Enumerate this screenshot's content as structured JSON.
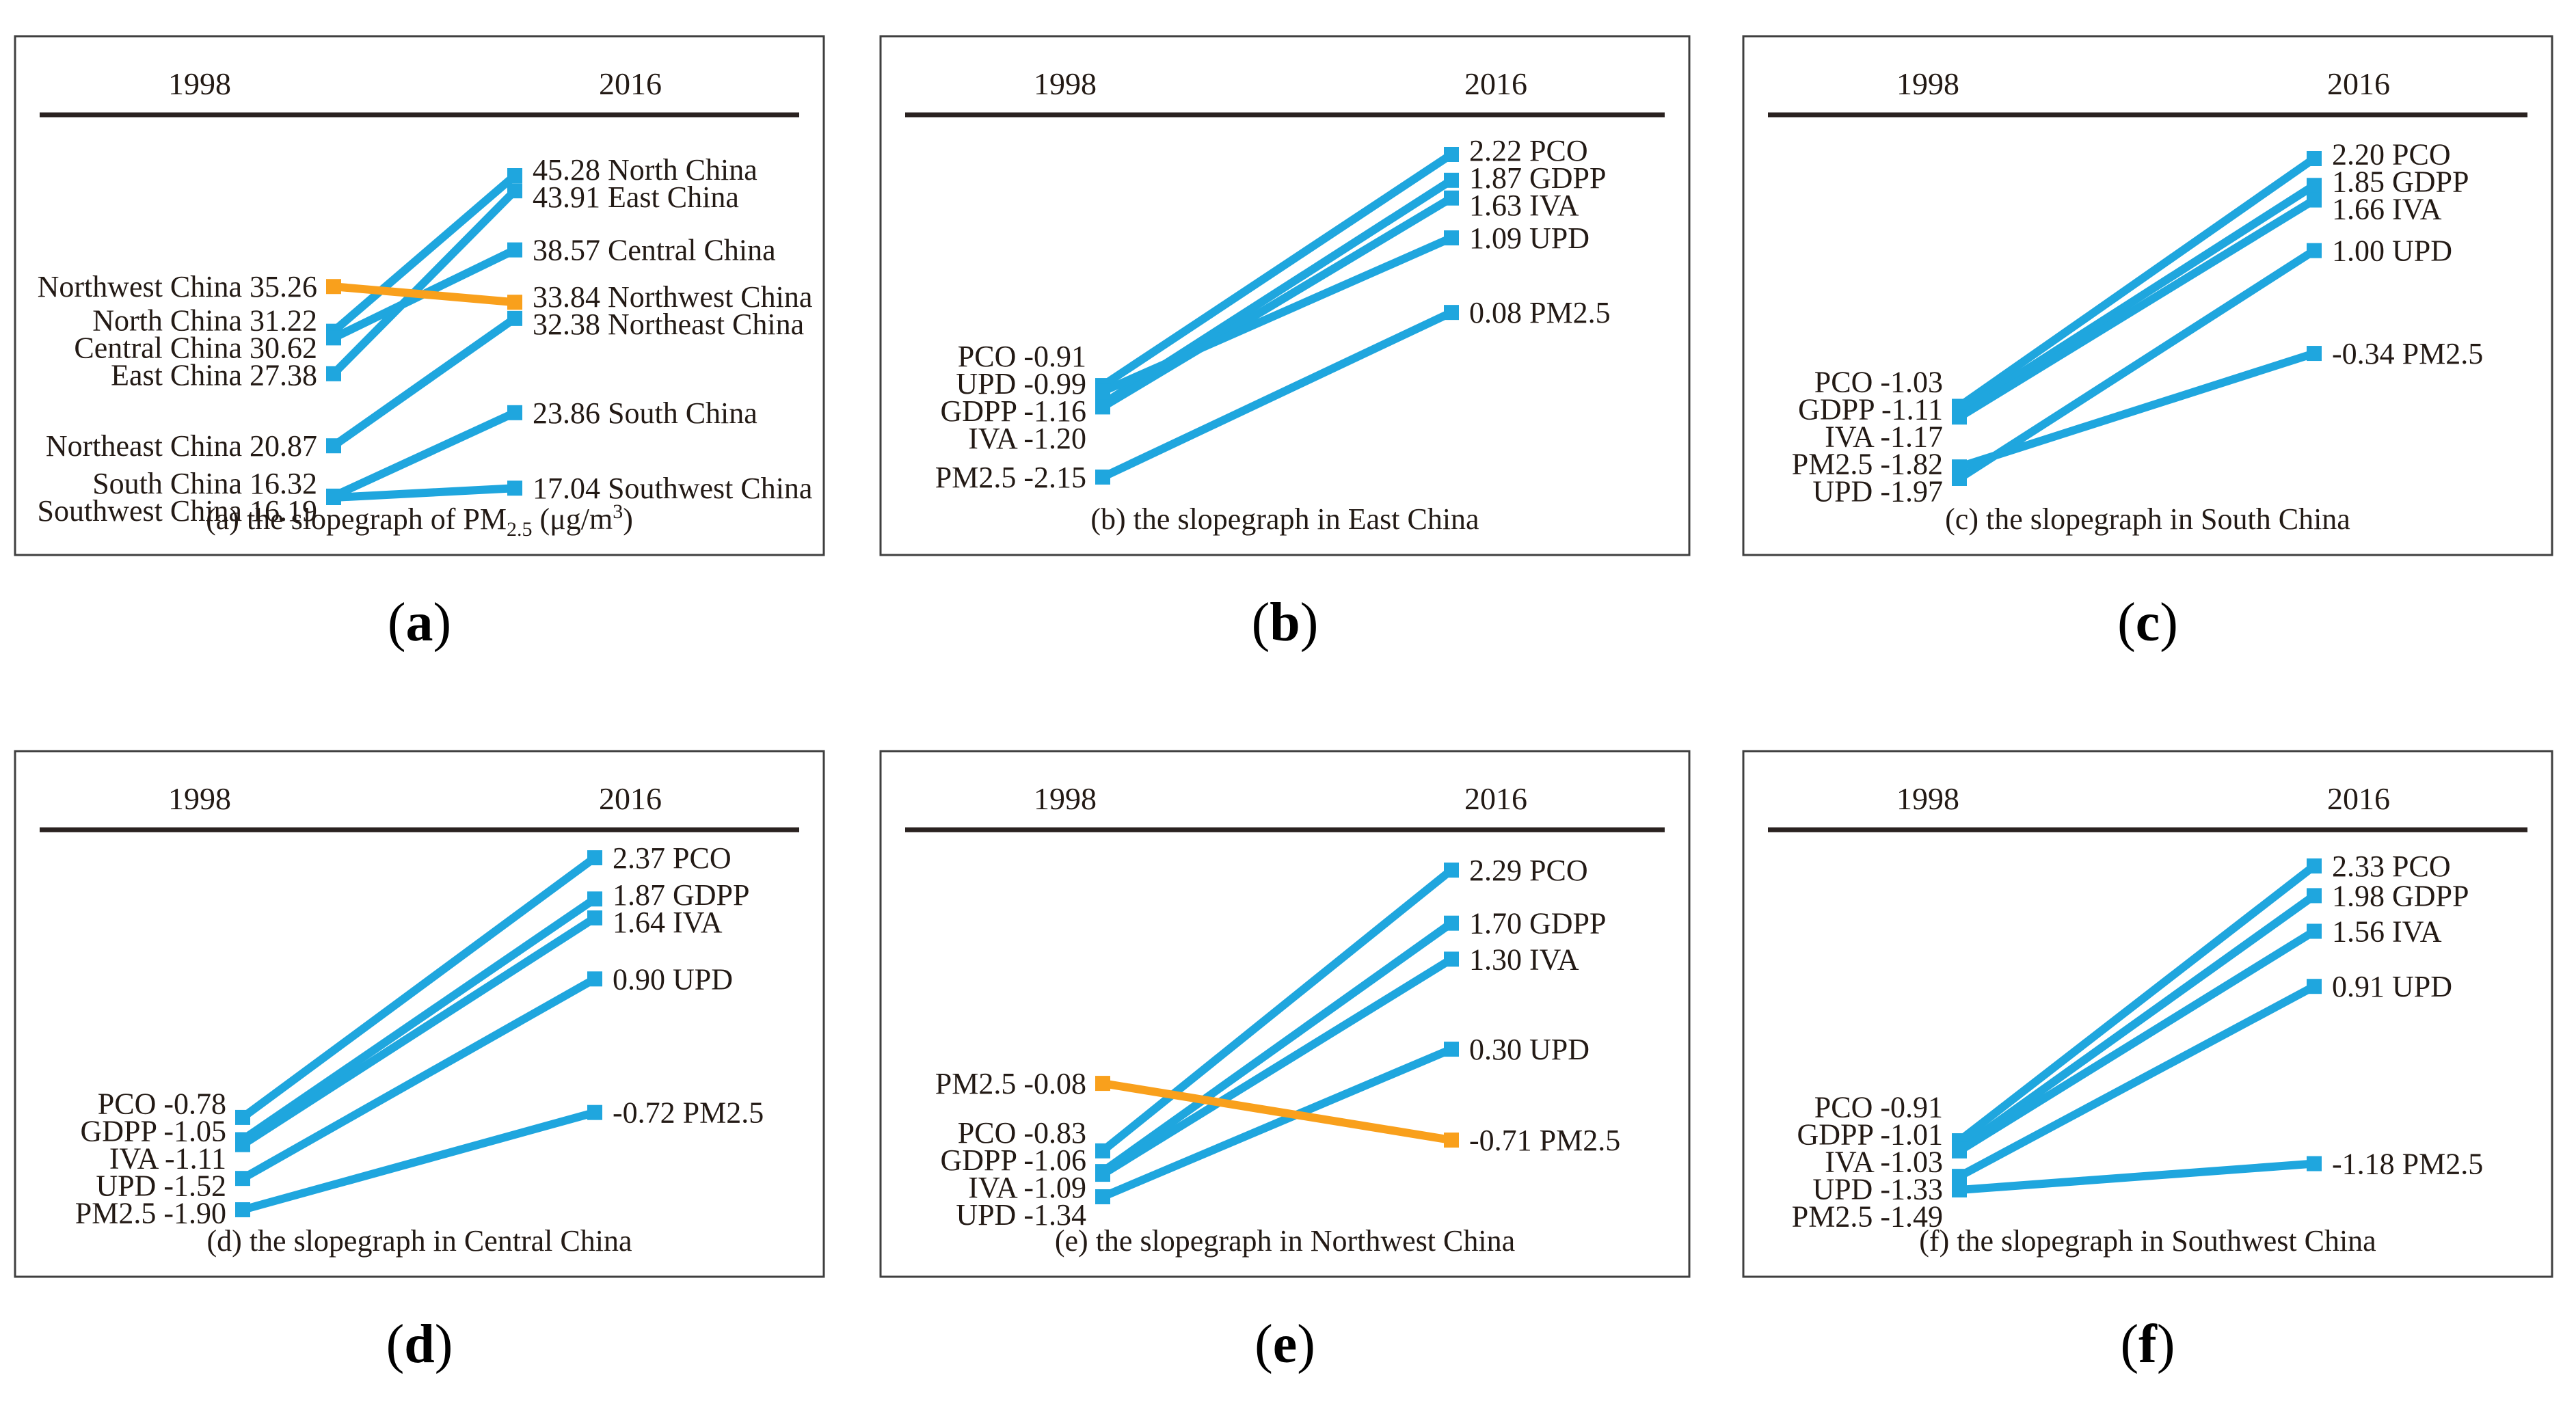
{
  "figure": {
    "colors": {
      "increase_blue": "#1FA6DE",
      "decrease_orange": "#F9A01C",
      "text": "#231A15",
      "frame": "#3F3F3F",
      "rule": "#2A2220"
    }
  },
  "chart_data": [
    {
      "type": "slopegraph",
      "title": "(a) the slopegraph of PM2.5 (μg/m3)",
      "letter": "a",
      "letter_parts": [
        {
          "t": "(",
          "b": false
        },
        {
          "t": "a",
          "b": true
        },
        {
          "t": ")",
          "b": false
        }
      ],
      "caption_parts": [
        {
          "t": "(a) the slopegraph of PM"
        },
        {
          "t": "2.5",
          "s": "sub"
        },
        {
          "t": " (μg/m",
          "s": ""
        },
        {
          "t": "3",
          "s": "sup"
        },
        {
          "t": ")",
          "s": ""
        }
      ],
      "columns": [
        "1998",
        "2016"
      ],
      "unit": "μg/m³",
      "series": [
        {
          "name": "North China",
          "values": [
            31.22,
            45.28
          ],
          "left_label": "North China 31.22",
          "right_label": "45.28 North China"
        },
        {
          "name": "East China",
          "values": [
            27.38,
            43.91
          ],
          "left_label": "East China 27.38",
          "right_label": "43.91 East China"
        },
        {
          "name": "Central China",
          "values": [
            30.62,
            38.57
          ],
          "left_label": "Central China 30.62",
          "right_label": "38.57 Central China"
        },
        {
          "name": "Northwest China",
          "values": [
            35.26,
            33.84
          ],
          "left_label": "Northwest China 35.26",
          "right_label": "33.84 Northwest China"
        },
        {
          "name": "Northeast China",
          "values": [
            20.87,
            32.38
          ],
          "left_label": "Northeast China 20.87",
          "right_label": "32.38 Northeast China"
        },
        {
          "name": "South China",
          "values": [
            16.32,
            23.86
          ],
          "left_label": "South China 16.32",
          "right_label": "23.86 South China"
        },
        {
          "name": "Southwest China",
          "values": [
            16.19,
            17.04
          ],
          "left_label": "Southwest China 16.19",
          "right_label": "17.04 Southwest China"
        }
      ]
    },
    {
      "type": "slopegraph",
      "title": "(b) the slopegraph in East China",
      "letter": "b",
      "letter_parts": [
        {
          "t": "(",
          "b": false
        },
        {
          "t": "b",
          "b": true
        },
        {
          "t": ")",
          "b": false
        }
      ],
      "caption_parts": [
        {
          "t": "(b) the slopegraph in East China",
          "s": ""
        }
      ],
      "columns": [
        "1998",
        "2016"
      ],
      "region": "East China",
      "series": [
        {
          "name": "PCO",
          "values": [
            -0.91,
            2.22
          ],
          "left_label": "PCO -0.91",
          "right_label": "2.22 PCO"
        },
        {
          "name": "GDPP",
          "values": [
            -1.16,
            1.87
          ],
          "left_label": "GDPP -1.16",
          "right_label": "1.87 GDPP"
        },
        {
          "name": "IVA",
          "values": [
            -1.2,
            1.63
          ],
          "left_label": "IVA -1.20",
          "right_label": "1.63 IVA"
        },
        {
          "name": "UPD",
          "values": [
            -0.99,
            1.09
          ],
          "left_label": "UPD -0.99",
          "right_label": "1.09 UPD"
        },
        {
          "name": "PM2.5",
          "values": [
            -2.15,
            0.08
          ],
          "left_label": "PM2.5 -2.15",
          "right_label": "0.08 PM2.5"
        }
      ]
    },
    {
      "type": "slopegraph",
      "title": "(c) the slopegraph in South China",
      "letter": "c",
      "letter_parts": [
        {
          "t": "(",
          "b": false
        },
        {
          "t": "c",
          "b": true
        },
        {
          "t": ")",
          "b": false
        }
      ],
      "caption_parts": [
        {
          "t": "(c) the slopegraph in South China",
          "s": ""
        }
      ],
      "columns": [
        "1998",
        "2016"
      ],
      "region": "South China",
      "series": [
        {
          "name": "PCO",
          "values": [
            -1.03,
            2.2
          ],
          "left_label": "PCO -1.03",
          "right_label": "2.20 PCO"
        },
        {
          "name": "GDPP",
          "values": [
            -1.11,
            1.85
          ],
          "left_label": "GDPP -1.11",
          "right_label": "1.85 GDPP"
        },
        {
          "name": "IVA",
          "values": [
            -1.17,
            1.66
          ],
          "left_label": "IVA -1.17",
          "right_label": "1.66 IVA"
        },
        {
          "name": "UPD",
          "values": [
            -1.97,
            1.0
          ],
          "left_label": "UPD -1.97",
          "right_label": "1.00 UPD"
        },
        {
          "name": "PM2.5",
          "values": [
            -1.82,
            -0.34
          ],
          "left_label": "PM2.5 -1.82",
          "right_label": "-0.34 PM2.5"
        }
      ]
    },
    {
      "type": "slopegraph",
      "title": "(d) the slopegraph in Central China",
      "letter": "d",
      "letter_parts": [
        {
          "t": "(",
          "b": false
        },
        {
          "t": "d",
          "b": true
        },
        {
          "t": ")",
          "b": false
        }
      ],
      "caption_parts": [
        {
          "t": "(d) the slopegraph in Central China",
          "s": ""
        }
      ],
      "columns": [
        "1998",
        "2016"
      ],
      "region": "Central China",
      "series": [
        {
          "name": "PCO",
          "values": [
            -0.78,
            2.37
          ],
          "left_label": "PCO -0.78",
          "right_label": "2.37 PCO"
        },
        {
          "name": "GDPP",
          "values": [
            -1.05,
            1.87
          ],
          "left_label": "GDPP -1.05",
          "right_label": "1.87 GDPP"
        },
        {
          "name": "IVA",
          "values": [
            -1.11,
            1.64
          ],
          "left_label": "IVA -1.11",
          "right_label": "1.64 IVA"
        },
        {
          "name": "UPD",
          "values": [
            -1.52,
            0.9
          ],
          "left_label": "UPD -1.52",
          "right_label": "0.90 UPD"
        },
        {
          "name": "PM2.5",
          "values": [
            -1.9,
            -0.72
          ],
          "left_label": "PM2.5 -1.90",
          "right_label": "-0.72 PM2.5"
        }
      ]
    },
    {
      "type": "slopegraph",
      "title": "(e) the slopegraph in Northwest China",
      "letter": "e",
      "letter_parts": [
        {
          "t": "(",
          "b": false
        },
        {
          "t": "e",
          "b": true
        },
        {
          "t": ")",
          "b": false
        }
      ],
      "caption_parts": [
        {
          "t": "(e) the slopegraph in Northwest China",
          "s": ""
        }
      ],
      "columns": [
        "1998",
        "2016"
      ],
      "region": "Northwest China",
      "series": [
        {
          "name": "PCO",
          "values": [
            -0.83,
            2.29
          ],
          "left_label": "PCO -0.83",
          "right_label": "2.29 PCO"
        },
        {
          "name": "GDPP",
          "values": [
            -1.06,
            1.7
          ],
          "left_label": "GDPP -1.06",
          "right_label": "1.70 GDPP"
        },
        {
          "name": "IVA",
          "values": [
            -1.09,
            1.3
          ],
          "left_label": "IVA -1.09",
          "right_label": "1.30 IVA"
        },
        {
          "name": "UPD",
          "values": [
            -1.34,
            0.3
          ],
          "left_label": "UPD -1.34",
          "right_label": "0.30 UPD"
        },
        {
          "name": "PM2.5",
          "values": [
            -0.08,
            -0.71
          ],
          "left_label": "PM2.5 -0.08",
          "right_label": "-0.71 PM2.5"
        }
      ]
    },
    {
      "type": "slopegraph",
      "title": "(f) the slopegraph in Southwest China",
      "letter": "f",
      "letter_parts": [
        {
          "t": "(",
          "b": false
        },
        {
          "t": "f",
          "b": true
        },
        {
          "t": ")",
          "b": false
        }
      ],
      "caption_parts": [
        {
          "t": "(f) the slopegraph in Southwest China",
          "s": ""
        }
      ],
      "columns": [
        "1998",
        "2016"
      ],
      "region": "Southwest China",
      "series": [
        {
          "name": "PCO",
          "values": [
            -0.91,
            2.33
          ],
          "left_label": "PCO -0.91",
          "right_label": "2.33 PCO"
        },
        {
          "name": "GDPP",
          "values": [
            -1.01,
            1.98
          ],
          "left_label": "GDPP -1.01",
          "right_label": "1.98 GDPP"
        },
        {
          "name": "IVA",
          "values": [
            -1.03,
            1.56
          ],
          "left_label": "IVA -1.03",
          "right_label": "1.56 IVA"
        },
        {
          "name": "UPD",
          "values": [
            -1.33,
            0.91
          ],
          "left_label": "UPD -1.33",
          "right_label": "0.91 UPD"
        },
        {
          "name": "PM2.5",
          "values": [
            -1.49,
            -1.18
          ],
          "left_label": "PM2.5 -1.49",
          "right_label": "-1.18 PM2.5"
        }
      ]
    }
  ]
}
